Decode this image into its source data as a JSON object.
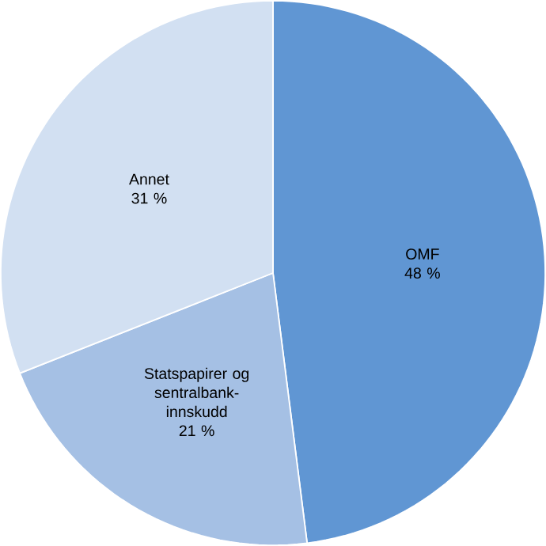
{
  "chart_data": {
    "type": "pie",
    "categories": [
      "OMF",
      "Statspapirer og sentralbank-innskudd",
      "Annet"
    ],
    "values": [
      48,
      21,
      31
    ],
    "value_labels": [
      "48 %",
      "21 %",
      "31 %"
    ],
    "colors": [
      "#6096d3",
      "#a5c0e4",
      "#d2e0f2"
    ]
  }
}
